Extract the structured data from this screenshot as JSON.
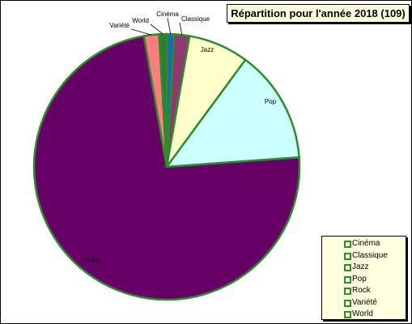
{
  "chart_data": {
    "type": "pie",
    "title": "Répartition pour l'année 2018 (109)",
    "categories": [
      "Cinéma",
      "Classique",
      "Jazz",
      "Pop",
      "Rock",
      "Variété",
      "World"
    ],
    "values": [
      1,
      2,
      8,
      15,
      80,
      2,
      1
    ],
    "colors": {
      "Cinéma": "#1a6ab5",
      "Classique": "#8e3a6e",
      "Jazz": "#ffffcc",
      "Pop": "#ccffff",
      "Rock": "#660066",
      "Variété": "#ff7f7f",
      "World": "#2f7f2f"
    },
    "slice_labels": [
      "Cinéma",
      "Classique",
      "Jazz",
      "Pop",
      "Rock",
      "Variété",
      "World"
    ],
    "edge_color": "#2e8b2e",
    "legend_placement": "bottom-right"
  },
  "legend": {
    "items": [
      "Cinéma",
      "Classique",
      "Jazz",
      "Pop",
      "Rock",
      "Variété",
      "World"
    ]
  }
}
